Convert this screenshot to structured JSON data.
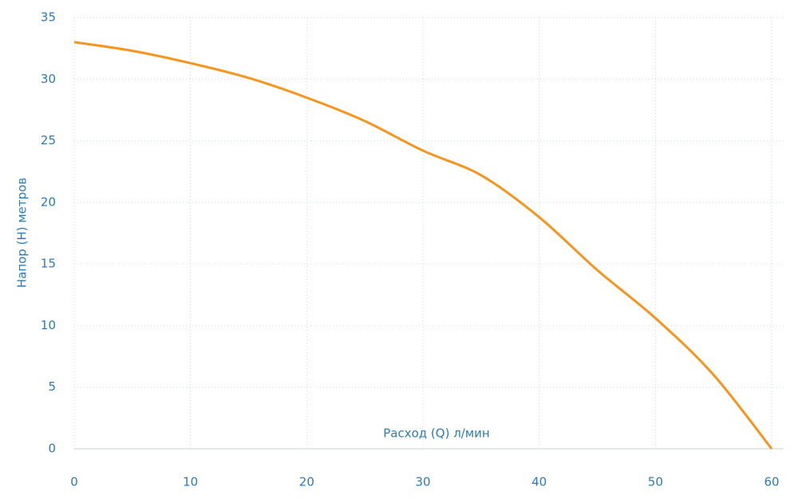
{
  "chart_data": {
    "type": "line",
    "x_label": "Расход (Q) л/мин",
    "y_label": "Напор (H) метров",
    "x": [
      0,
      5,
      10,
      15,
      20,
      25,
      30,
      35,
      40,
      45,
      50,
      55,
      60
    ],
    "series": [
      {
        "name": null,
        "color": "#f7941d",
        "values": [
          33.0,
          32.3,
          31.3,
          30.1,
          28.5,
          26.6,
          24.2,
          22.2,
          18.8,
          14.5,
          10.6,
          6.0,
          0
        ]
      }
    ],
    "xlim": [
      0,
      61
    ],
    "ylim": [
      0,
      35
    ],
    "xticks": [
      0,
      10,
      20,
      30,
      40,
      50,
      60
    ],
    "yticks": [
      0,
      5,
      10,
      15,
      20,
      25,
      30,
      35
    ],
    "grid": true
  }
}
